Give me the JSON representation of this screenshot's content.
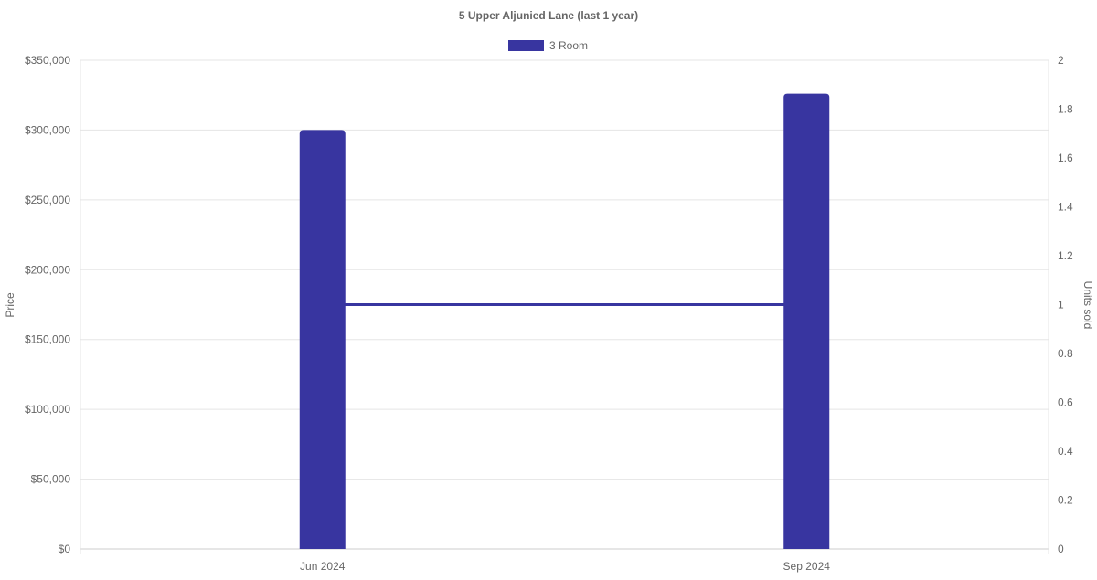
{
  "chart_data": {
    "type": "bar",
    "title": "5 Upper Aljunied Lane (last 1 year)",
    "categories": [
      "Jun 2024",
      "Sep 2024"
    ],
    "series": [
      {
        "name": "3 Room",
        "type": "bar",
        "axis": "left",
        "values": [
          300000,
          326000
        ]
      },
      {
        "name": "3 Room",
        "type": "line",
        "axis": "right",
        "values": [
          1,
          1
        ]
      }
    ],
    "ylabel": "Price",
    "y2label": "Units sold",
    "ylim": [
      0,
      350000
    ],
    "y2lim": [
      0,
      2
    ],
    "yticks": [
      "$0",
      "$50,000",
      "$100,000",
      "$150,000",
      "$200,000",
      "$250,000",
      "$300,000",
      "$350,000"
    ],
    "y2ticks": [
      "0",
      "0.2",
      "0.4",
      "0.6",
      "0.8",
      "1",
      "1.2",
      "1.4",
      "1.6",
      "1.8",
      "2"
    ],
    "legend": {
      "label": "3 Room",
      "placement": "top"
    },
    "grid": true,
    "color": "#3835a0"
  }
}
